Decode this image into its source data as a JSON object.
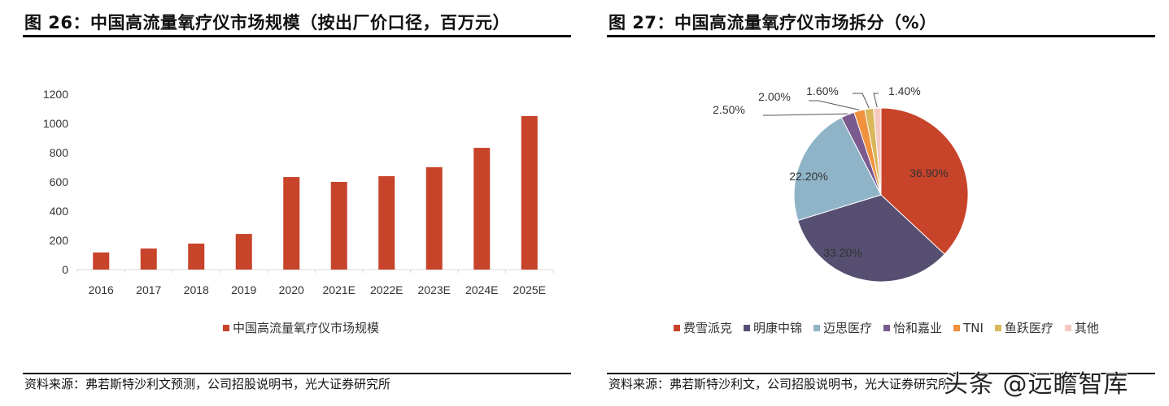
{
  "figures": {
    "left": {
      "title": "图 26：中国高流量氧疗仪市场规模（按出厂价口径，百万元）",
      "source": "资料来源：弗若斯特沙利文预测，公司招股说明书，光大证券研究所",
      "legend_label": "中国高流量氧疗仪市场规模"
    },
    "right": {
      "title": "图 27：中国高流量氧疗仪市场拆分（%）",
      "source": "资料来源：弗若斯特沙利文，公司招股说明书，光大证券研究所"
    }
  },
  "watermark": "头条 @远瞻智库",
  "chart_data": [
    {
      "type": "bar",
      "title": "中国高流量氧疗仪市场规模（按出厂价口径，百万元）",
      "xlabel": "",
      "ylabel": "",
      "categories": [
        "2016",
        "2017",
        "2018",
        "2019",
        "2020",
        "2021E",
        "2022E",
        "2023E",
        "2024E",
        "2025E"
      ],
      "series": [
        {
          "name": "中国高流量氧疗仪市场规模",
          "color": "#C7432A",
          "values": [
            117,
            144,
            178,
            244,
            633,
            600,
            639,
            700,
            833,
            1050
          ]
        }
      ],
      "ylim": [
        0,
        1200
      ],
      "yticks": [
        0,
        200,
        400,
        600,
        800,
        1000,
        1200
      ],
      "grid": false,
      "legend_position": "bottom"
    },
    {
      "type": "pie",
      "title": "中国高流量氧疗仪市场拆分（%）",
      "labels": [
        "费雪派克",
        "明康中锦",
        "迈思医疗",
        "怡和嘉业",
        "TNI",
        "鱼跃医疗",
        "其他"
      ],
      "values": [
        36.9,
        33.2,
        22.2,
        2.5,
        2.0,
        1.6,
        1.4
      ],
      "value_labels": [
        "36.90%",
        "33.20%",
        "22.20%",
        "2.50%",
        "2.00%",
        "1.60%",
        "1.40%"
      ],
      "colors": [
        "#C7432A",
        "#564F71",
        "#8FB4C8",
        "#7B5A8E",
        "#F0913E",
        "#D9B75A",
        "#F6C9C0"
      ],
      "start_angle": "12 o'clock",
      "direction": "clockwise",
      "legend_position": "bottom"
    }
  ]
}
